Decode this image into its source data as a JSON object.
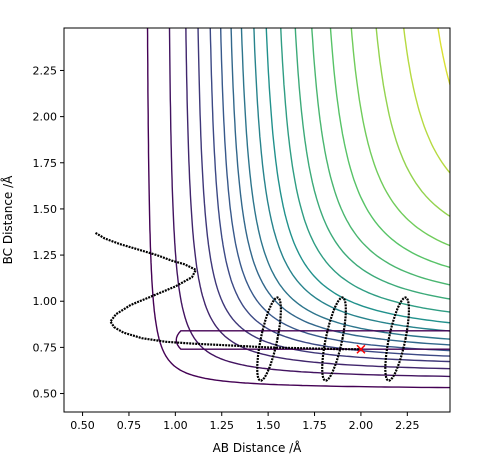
{
  "chart_data": {
    "type": "line",
    "subtype": "contour plot with overlaid trajectory",
    "title": "",
    "xlabel": "AB Distance /Å",
    "ylabel": "BC Distance /Å",
    "xlim": [
      0.4,
      2.48
    ],
    "ylim": [
      0.4,
      2.48
    ],
    "xticks": [
      0.5,
      0.75,
      1.0,
      1.25,
      1.5,
      1.75,
      2.0,
      2.25
    ],
    "xtick_labels": [
      "0.50",
      "0.75",
      "1.00",
      "1.25",
      "1.50",
      "1.75",
      "2.00",
      "2.25"
    ],
    "yticks": [
      0.5,
      0.75,
      1.0,
      1.25,
      1.5,
      1.75,
      2.0,
      2.25
    ],
    "ytick_labels": [
      "0.50",
      "0.75",
      "1.00",
      "1.25",
      "1.50",
      "1.75",
      "2.00",
      "2.25"
    ],
    "grid": false,
    "legend": "none",
    "colormap": "viridis",
    "contour_levels": 20,
    "colormap_stops": [
      "#440154",
      "#3b528b",
      "#21918c",
      "#5ec962",
      "#fde725"
    ],
    "contour_asymptote_x": [
      0.84,
      0.95,
      1.03,
      1.09,
      1.15,
      1.2,
      1.25,
      1.3,
      1.36,
      1.42,
      1.49,
      1.56,
      1.64,
      1.73,
      1.83,
      1.95,
      2.08,
      2.24,
      2.42
    ],
    "contour_asymptote_y": [
      0.52,
      0.57,
      0.6,
      0.63,
      0.65,
      0.67,
      0.69,
      0.71,
      0.74,
      0.77,
      0.81,
      0.86,
      0.91,
      0.97,
      1.04,
      1.12,
      1.22,
      1.34,
      1.48
    ],
    "contour_curvature": [
      0.02,
      0.035,
      0.05,
      0.06,
      0.07,
      0.08,
      0.09,
      0.1,
      0.11,
      0.12,
      0.13,
      0.14,
      0.15,
      0.16,
      0.17,
      0.18,
      0.19,
      0.2,
      0.22
    ],
    "inner_contour_bounds": {
      "x_left": 0.98,
      "y_top": 0.84,
      "y_bottom": 0.74
    },
    "trajectory": [
      [
        0.57,
        1.37
      ],
      [
        0.62,
        1.34
      ],
      [
        0.7,
        1.31
      ],
      [
        0.8,
        1.28
      ],
      [
        0.9,
        1.25
      ],
      [
        0.98,
        1.22
      ],
      [
        1.05,
        1.2
      ],
      [
        1.11,
        1.17
      ],
      [
        1.09,
        1.13
      ],
      [
        1.0,
        1.08
      ],
      [
        0.88,
        1.03
      ],
      [
        0.76,
        0.98
      ],
      [
        0.68,
        0.93
      ],
      [
        0.65,
        0.89
      ],
      [
        0.67,
        0.86
      ],
      [
        0.72,
        0.83
      ],
      [
        0.82,
        0.8
      ],
      [
        0.95,
        0.78
      ],
      [
        1.1,
        0.77
      ],
      [
        1.3,
        0.76
      ],
      [
        1.5,
        0.75
      ],
      [
        1.7,
        0.745
      ],
      [
        1.9,
        0.74
      ],
      [
        2.0,
        0.74
      ]
    ],
    "vibration_loops": [
      {
        "x_min": 1.46,
        "x_max": 1.55,
        "y_min": 0.57,
        "y_max": 1.02
      },
      {
        "x_min": 1.81,
        "x_max": 1.9,
        "y_min": 0.57,
        "y_max": 1.02
      },
      {
        "x_min": 2.15,
        "x_max": 2.24,
        "y_min": 0.57,
        "y_max": 1.02
      }
    ],
    "ab_vibration_arc": {
      "x_center": 1.1,
      "x_amplitude": 0.12,
      "y_from": 1.2,
      "y_to": 0.82
    },
    "end_marker": {
      "x": 2.0,
      "y": 0.74,
      "symbol": "x",
      "color": "#ff0000"
    }
  }
}
